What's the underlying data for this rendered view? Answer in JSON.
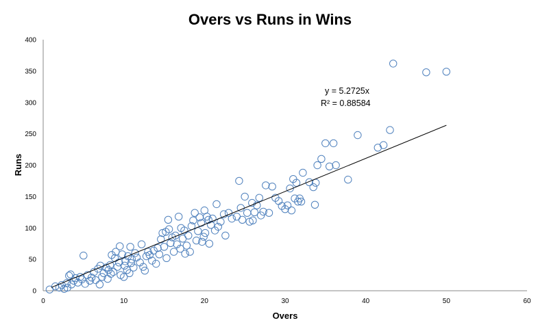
{
  "chart_data": {
    "type": "scatter",
    "title": "Overs vs Runs in Wins",
    "xlabel": "Overs",
    "ylabel": "Runs",
    "xlim": [
      0,
      60
    ],
    "ylim": [
      0,
      400
    ],
    "xticks": [
      "0",
      "10",
      "20",
      "30",
      "40",
      "50",
      "60"
    ],
    "yticks": [
      "0",
      "50",
      "100",
      "150",
      "200",
      "250",
      "300",
      "350",
      "400"
    ],
    "grid": false,
    "legend": "none",
    "colors": {
      "marker": "#4f81bd",
      "trendline": "#000000"
    },
    "trendline": {
      "type": "linear-through-origin",
      "slope": 5.2725,
      "x_range": [
        1,
        50
      ],
      "equation_label": "y = 5.2725x",
      "r2_label": "R² = 0.88584"
    },
    "series": [
      {
        "points": [
          [
            0.8,
            2
          ],
          [
            1.5,
            7
          ],
          [
            2.0,
            5
          ],
          [
            2.3,
            9
          ],
          [
            2.6,
            3
          ],
          [
            2.9,
            12
          ],
          [
            3.0,
            5
          ],
          [
            3.2,
            24
          ],
          [
            3.4,
            26
          ],
          [
            3.5,
            10
          ],
          [
            3.8,
            16
          ],
          [
            4.0,
            20
          ],
          [
            4.3,
            13
          ],
          [
            4.6,
            22
          ],
          [
            4.8,
            18
          ],
          [
            5.0,
            56
          ],
          [
            5.2,
            11
          ],
          [
            5.5,
            25
          ],
          [
            5.8,
            16
          ],
          [
            6.0,
            21
          ],
          [
            6.3,
            30
          ],
          [
            6.5,
            17
          ],
          [
            6.8,
            35
          ],
          [
            7.0,
            10
          ],
          [
            7.1,
            40
          ],
          [
            7.3,
            22
          ],
          [
            7.5,
            28
          ],
          [
            7.8,
            37
          ],
          [
            8.0,
            19
          ],
          [
            8.1,
            33
          ],
          [
            8.3,
            41
          ],
          [
            8.4,
            27
          ],
          [
            8.5,
            57
          ],
          [
            8.7,
            30
          ],
          [
            8.9,
            52
          ],
          [
            9.0,
            62
          ],
          [
            9.2,
            38
          ],
          [
            9.4,
            45
          ],
          [
            9.5,
            71
          ],
          [
            9.6,
            25
          ],
          [
            9.8,
            58
          ],
          [
            10.0,
            22
          ],
          [
            10.1,
            40
          ],
          [
            10.2,
            47
          ],
          [
            10.4,
            33
          ],
          [
            10.5,
            55
          ],
          [
            10.7,
            28
          ],
          [
            10.8,
            70
          ],
          [
            10.9,
            44
          ],
          [
            11.0,
            50
          ],
          [
            11.2,
            37
          ],
          [
            11.4,
            60
          ],
          [
            11.6,
            53
          ],
          [
            12.0,
            45
          ],
          [
            12.2,
            74
          ],
          [
            12.4,
            38
          ],
          [
            12.6,
            32
          ],
          [
            12.8,
            55
          ],
          [
            13.0,
            62
          ],
          [
            13.2,
            57
          ],
          [
            13.5,
            48
          ],
          [
            13.7,
            64
          ],
          [
            14.0,
            43
          ],
          [
            14.2,
            68
          ],
          [
            14.4,
            58
          ],
          [
            14.6,
            82
          ],
          [
            14.8,
            92
          ],
          [
            15.0,
            70
          ],
          [
            15.2,
            94
          ],
          [
            15.3,
            52
          ],
          [
            15.5,
            113
          ],
          [
            15.6,
            98
          ],
          [
            15.8,
            76
          ],
          [
            16.0,
            85
          ],
          [
            16.2,
            62
          ],
          [
            16.4,
            88
          ],
          [
            16.6,
            74
          ],
          [
            16.8,
            118
          ],
          [
            17.0,
            67
          ],
          [
            17.1,
            100
          ],
          [
            17.3,
            83
          ],
          [
            17.5,
            96
          ],
          [
            17.6,
            59
          ],
          [
            17.8,
            72
          ],
          [
            18.0,
            88
          ],
          [
            18.2,
            62
          ],
          [
            18.4,
            103
          ],
          [
            18.6,
            112
          ],
          [
            18.8,
            124
          ],
          [
            19.0,
            80
          ],
          [
            19.2,
            95
          ],
          [
            19.4,
            117
          ],
          [
            19.6,
            108
          ],
          [
            19.7,
            78
          ],
          [
            19.9,
            86
          ],
          [
            20.0,
            128
          ],
          [
            20.1,
            92
          ],
          [
            20.3,
            118
          ],
          [
            20.5,
            113
          ],
          [
            20.6,
            75
          ],
          [
            20.8,
            105
          ],
          [
            21.0,
            115
          ],
          [
            21.3,
            96
          ],
          [
            21.5,
            138
          ],
          [
            21.7,
            102
          ],
          [
            22.0,
            110
          ],
          [
            22.4,
            122
          ],
          [
            22.6,
            88
          ],
          [
            23.0,
            124
          ],
          [
            23.4,
            115
          ],
          [
            24.0,
            118
          ],
          [
            24.3,
            175
          ],
          [
            24.5,
            132
          ],
          [
            24.7,
            113
          ],
          [
            25.0,
            150
          ],
          [
            25.3,
            124
          ],
          [
            25.6,
            110
          ],
          [
            25.9,
            140
          ],
          [
            26.0,
            112
          ],
          [
            26.2,
            125
          ],
          [
            26.5,
            136
          ],
          [
            26.8,
            148
          ],
          [
            27.0,
            120
          ],
          [
            27.3,
            126
          ],
          [
            27.6,
            168
          ],
          [
            28.0,
            124
          ],
          [
            28.4,
            166
          ],
          [
            28.8,
            148
          ],
          [
            29.2,
            143
          ],
          [
            29.6,
            135
          ],
          [
            30.0,
            130
          ],
          [
            30.3,
            136
          ],
          [
            30.6,
            163
          ],
          [
            30.8,
            128
          ],
          [
            31.0,
            178
          ],
          [
            31.2,
            147
          ],
          [
            31.4,
            172
          ],
          [
            31.6,
            142
          ],
          [
            31.8,
            147
          ],
          [
            32.0,
            142
          ],
          [
            32.2,
            188
          ],
          [
            33.0,
            173
          ],
          [
            33.5,
            165
          ],
          [
            33.7,
            137
          ],
          [
            33.8,
            172
          ],
          [
            34.0,
            200
          ],
          [
            34.5,
            210
          ],
          [
            35.0,
            235
          ],
          [
            35.5,
            198
          ],
          [
            36.0,
            235
          ],
          [
            36.3,
            200
          ],
          [
            37.8,
            177
          ],
          [
            39.0,
            248
          ],
          [
            41.5,
            228
          ],
          [
            42.2,
            232
          ],
          [
            43.0,
            256
          ],
          [
            43.4,
            362
          ],
          [
            47.5,
            348
          ],
          [
            50.0,
            349
          ]
        ]
      }
    ]
  }
}
